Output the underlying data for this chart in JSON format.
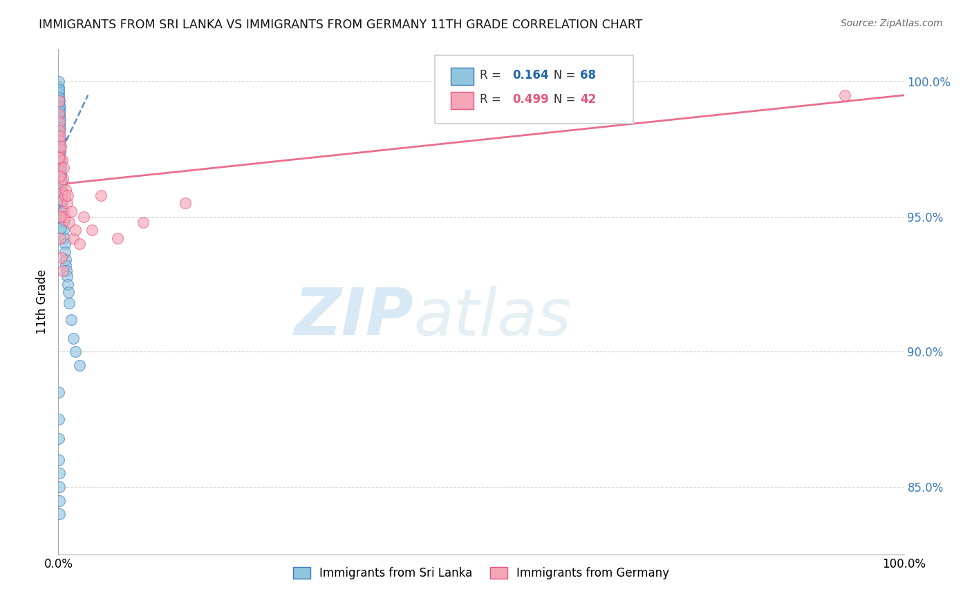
{
  "title": "IMMIGRANTS FROM SRI LANKA VS IMMIGRANTS FROM GERMANY 11TH GRADE CORRELATION CHART",
  "source": "Source: ZipAtlas.com",
  "ylabel": "11th Grade",
  "legend_blue_label": "Immigrants from Sri Lanka",
  "legend_pink_label": "Immigrants from Germany",
  "R_blue": 0.164,
  "N_blue": 68,
  "R_pink": 0.499,
  "N_pink": 42,
  "watermark_ZIP": "ZIP",
  "watermark_atlas": "atlas",
  "blue_color": "#92c5de",
  "pink_color": "#f4a6b8",
  "blue_line_color": "#3a7abf",
  "pink_line_color": "#e8547a",
  "xmin": 0.0,
  "xmax": 100.0,
  "ymin": 82.5,
  "ymax": 101.2,
  "ytick_right": [
    85.0,
    90.0,
    95.0,
    100.0
  ],
  "blue_scatter_x": [
    0.05,
    0.05,
    0.08,
    0.08,
    0.1,
    0.1,
    0.1,
    0.12,
    0.12,
    0.15,
    0.15,
    0.15,
    0.18,
    0.18,
    0.2,
    0.2,
    0.2,
    0.22,
    0.22,
    0.25,
    0.25,
    0.28,
    0.3,
    0.3,
    0.32,
    0.35,
    0.35,
    0.38,
    0.4,
    0.42,
    0.45,
    0.48,
    0.5,
    0.55,
    0.6,
    0.65,
    0.7,
    0.75,
    0.8,
    0.85,
    0.9,
    0.95,
    1.0,
    1.1,
    1.2,
    1.3,
    1.5,
    1.8,
    2.0,
    2.5,
    0.05,
    0.07,
    0.09,
    0.11,
    0.13,
    0.16,
    0.19,
    0.23,
    0.27,
    0.33,
    0.04,
    0.06,
    0.06,
    0.08,
    0.1,
    0.12,
    0.14,
    0.17
  ],
  "blue_scatter_y": [
    99.8,
    99.5,
    99.6,
    99.2,
    99.0,
    98.7,
    98.4,
    99.3,
    98.8,
    99.1,
    98.5,
    98.2,
    98.6,
    97.9,
    98.3,
    97.6,
    97.2,
    97.8,
    97.4,
    97.5,
    97.0,
    96.8,
    96.5,
    96.2,
    96.6,
    96.3,
    95.9,
    96.0,
    95.7,
    95.5,
    95.8,
    95.3,
    95.2,
    95.0,
    94.8,
    94.5,
    94.2,
    94.0,
    93.7,
    93.4,
    93.2,
    93.0,
    92.8,
    92.5,
    92.2,
    91.8,
    91.2,
    90.5,
    90.0,
    89.5,
    100.0,
    99.7,
    99.4,
    99.1,
    98.9,
    98.0,
    97.1,
    96.7,
    95.6,
    94.6,
    88.5,
    87.5,
    86.8,
    86.0,
    85.5,
    85.0,
    84.5,
    84.0
  ],
  "pink_scatter_x": [
    0.05,
    0.08,
    0.1,
    0.12,
    0.15,
    0.18,
    0.2,
    0.22,
    0.25,
    0.28,
    0.3,
    0.35,
    0.4,
    0.45,
    0.5,
    0.55,
    0.6,
    0.65,
    0.7,
    0.75,
    0.8,
    0.9,
    1.0,
    1.1,
    1.3,
    1.5,
    1.8,
    2.0,
    2.5,
    3.0,
    0.08,
    0.12,
    0.18,
    0.25,
    4.0,
    5.0,
    7.0,
    10.0,
    15.0,
    0.35,
    0.55,
    93.0
  ],
  "pink_scatter_y": [
    99.3,
    98.8,
    98.5,
    98.2,
    97.8,
    97.5,
    97.2,
    98.0,
    96.8,
    97.6,
    96.5,
    96.2,
    95.9,
    97.1,
    95.6,
    96.4,
    95.2,
    96.8,
    94.9,
    95.8,
    95.0,
    96.0,
    95.5,
    95.8,
    94.8,
    95.2,
    94.2,
    94.5,
    94.0,
    95.0,
    97.2,
    96.5,
    95.0,
    94.2,
    94.5,
    95.8,
    94.2,
    94.8,
    95.5,
    93.5,
    93.0,
    99.5
  ],
  "blue_trend_x0": 0.0,
  "blue_trend_x1": 3.5,
  "blue_trend_y0": 97.2,
  "blue_trend_y1": 99.5,
  "pink_trend_x0": 0.0,
  "pink_trend_x1": 100.0,
  "pink_trend_y0": 96.2,
  "pink_trend_y1": 99.5
}
